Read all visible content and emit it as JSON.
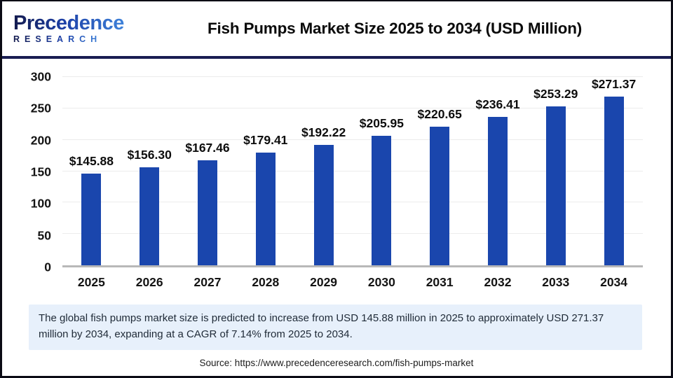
{
  "header": {
    "logo_line1": "Precedence",
    "logo_line2": "RESEARCH",
    "title": "Fish Pumps Market Size 2025 to 2034 (USD Million)"
  },
  "chart_data": {
    "type": "bar",
    "title": "Fish Pumps Market Size 2025 to 2034 (USD Million)",
    "categories": [
      "2025",
      "2026",
      "2027",
      "2028",
      "2029",
      "2030",
      "2031",
      "2032",
      "2033",
      "2034"
    ],
    "values": [
      145.88,
      156.3,
      167.46,
      179.41,
      192.22,
      205.95,
      220.65,
      236.41,
      253.29,
      271.37
    ],
    "bar_labels": [
      "$145.88",
      "$156.30",
      "$167.46",
      "$179.41",
      "$192.22",
      "$205.95",
      "$220.65",
      "$236.41",
      "$253.29",
      "$271.37"
    ],
    "xlabel": "",
    "ylabel": "",
    "ylim": [
      0,
      300
    ],
    "yticks": [
      0,
      50,
      100,
      150,
      200,
      250,
      300
    ],
    "grid": true,
    "legend": "none",
    "bar_color": "#1a46ad"
  },
  "note": {
    "text": "The global fish pumps market size is predicted to increase from USD 145.88 million in 2025 to approximately USD 271.37 million by 2034, expanding at a CAGR of 7.14% from 2025 to 2034."
  },
  "source": {
    "text": "Source: https://www.precedenceresearch.com/fish-pumps-market"
  },
  "colors": {
    "bar": "#1a46ad",
    "divider": "#191d52",
    "note_background": "#e7f0fb",
    "gridline": "#ececec",
    "axis_line": "#b8b8b8",
    "logo_gradient_start": "#141b4e",
    "logo_gradient_end": "#3e82da"
  }
}
